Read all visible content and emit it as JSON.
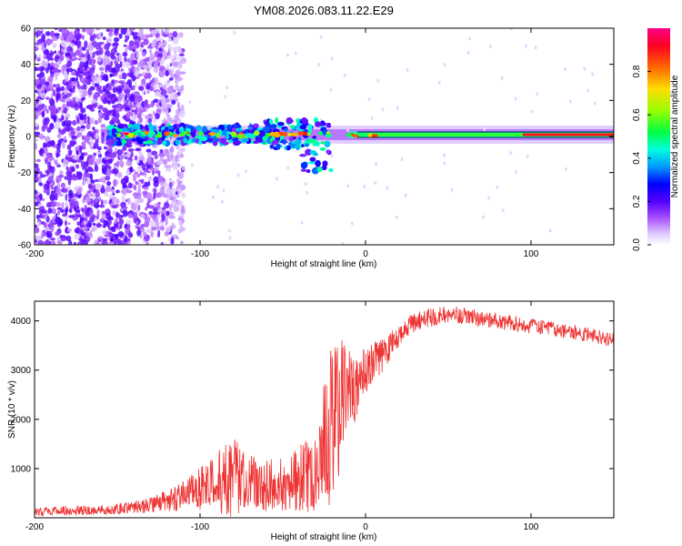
{
  "title": "YM08.2026.083.11.22.E29",
  "chart_data": [
    {
      "type": "heatmap",
      "title": "YM08.2026.083.11.22.E29",
      "xlabel": "Height of straight line (km)",
      "ylabel": "Frequency (Hz)",
      "xlim": [
        -200,
        150
      ],
      "ylim": [
        -60,
        60
      ],
      "xticks": [
        -200,
        -100,
        0,
        100
      ],
      "yticks": [
        -60,
        -40,
        -20,
        0,
        20,
        40,
        60
      ],
      "xtick_labels": [
        "-200",
        "-100",
        "0",
        "100"
      ],
      "ytick_labels": [
        "-60",
        "-40",
        "-20",
        "0",
        "20",
        "40",
        "60"
      ],
      "colorbar": {
        "label": "Normalized spectral amplitude",
        "range": [
          0,
          1
        ],
        "ticks": [
          0.0,
          0.2,
          0.4,
          0.6,
          0.8
        ],
        "tick_labels": [
          "0.0",
          "0.2",
          "0.4",
          "0.6",
          "0.8"
        ],
        "colormap": [
          "#ffffff",
          "#cc99ff",
          "#9933ff",
          "#6600ff",
          "#0000ff",
          "#00aaff",
          "#00ffcc",
          "#00ff00",
          "#ccff00",
          "#ffcc00",
          "#ff6600",
          "#ff0000",
          "#ff0077"
        ]
      },
      "features": {
        "scatter_region_x": [
          -200,
          -110
        ],
        "dense_cluster_x": [
          -155,
          -20
        ],
        "line_center_hz": 1,
        "line_end_x": 150
      }
    },
    {
      "type": "line",
      "xlabel": "Height of straight line (km)",
      "ylabel": "SNR (10 * v/v)",
      "xlim": [
        -200,
        150
      ],
      "ylim": [
        0,
        4400
      ],
      "xticks": [
        -200,
        -100,
        0,
        100
      ],
      "yticks": [
        1000,
        2000,
        3000,
        4000
      ],
      "xtick_labels": [
        "-200",
        "-100",
        "0",
        "100"
      ],
      "ytick_labels": [
        "1000",
        "2000",
        "3000",
        "4000"
      ],
      "series": [
        {
          "name": "SNR",
          "color": "#ee3333",
          "envelope": {
            "x": [
              -200,
              -150,
              -130,
              -110,
              -90,
              -80,
              -70,
              -60,
              -50,
              -40,
              -30,
              -25,
              -20,
              -15,
              -10,
              -5,
              0,
              10,
              20,
              30,
              50,
              70,
              100,
              130,
              150
            ],
            "mean": [
              120,
              180,
              250,
              450,
              700,
              900,
              750,
              650,
              650,
              800,
              900,
              1500,
              2000,
              2400,
              2600,
              2700,
              3000,
              3300,
              3700,
              4000,
              4150,
              4050,
              3900,
              3750,
              3600
            ],
            "amp": [
              90,
              110,
              160,
              300,
              600,
              900,
              600,
              550,
              550,
              700,
              800,
              1300,
              1700,
              1500,
              900,
              700,
              500,
              350,
              250,
              200,
              180,
              170,
              160,
              150,
              150
            ]
          }
        }
      ]
    }
  ]
}
